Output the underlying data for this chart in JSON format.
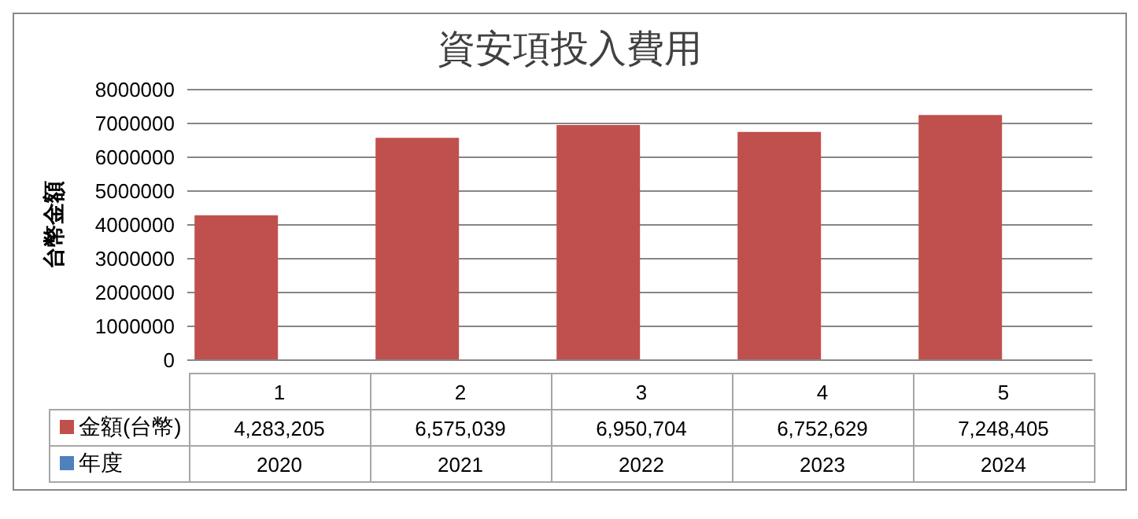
{
  "chart_data": {
    "type": "bar",
    "title": "資安項投入費用",
    "ylabel": "台幣金額",
    "categories": [
      "1",
      "2",
      "3",
      "4",
      "5"
    ],
    "series": [
      {
        "name": "金額(台幣)",
        "color": "#c0504d",
        "values": [
          4283205,
          6575039,
          6950704,
          6752629,
          7248405
        ],
        "value_labels": [
          "4,283,205",
          "6,575,039",
          "6,950,704",
          "6,752,629",
          "7,248,405"
        ]
      },
      {
        "name": "年度",
        "color": "#4f81bd",
        "values": [
          2020,
          2021,
          2022,
          2023,
          2024
        ],
        "value_labels": [
          "2020",
          "2021",
          "2022",
          "2023",
          "2024"
        ]
      }
    ],
    "ylim": [
      0,
      8000000
    ],
    "yticks": [
      0,
      1000000,
      2000000,
      3000000,
      4000000,
      5000000,
      6000000,
      7000000,
      8000000
    ],
    "grid": "y",
    "legend": "bottom left"
  }
}
